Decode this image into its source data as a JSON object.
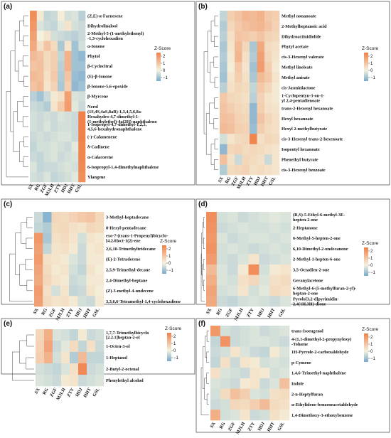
{
  "chart_data": [
    {
      "type": "heatmap",
      "panel_label": "(a)",
      "legend_title": "Z-Score",
      "legend_ticks": [
        2,
        1,
        0,
        -1
      ],
      "columns": [
        "SX",
        "RG",
        "ZGF",
        "MJLH",
        "ZTY",
        "HDJ",
        "HHT",
        "GSL"
      ],
      "rows": [
        "(Z,E)-α-Farnesene",
        "Dihydrolinalool",
        "2-Methyl-5-(1-methylethenyl)\n-1,3-cyclohexadien",
        "α-Ionone",
        "Phytol",
        "β-Cyclocitral",
        "(E)-β-Ionone",
        "β-Ionone-5,6-epoxide",
        "β-Myrcene",
        "Nerol",
        "(1S,4S,4aS,8aR)-1,3,4,5,6,8a-\nHexahydro-4,7-dimethyl-1-\n(1-methylethyl)-4a(2H)-naphthaleno",
        "1-Isopropyl-4,7-dimethyl-1,2,3,\n4,5,6-hexahydronaphthalene",
        "(-)-Calamenene",
        "δ-Cadinene",
        "α-Calacorene",
        "6-Isopropyl-1,4-dimethylnaphthalene",
        "Ylangene"
      ],
      "values": [
        [
          2.2,
          0.2,
          -0.6,
          -0.5,
          0.1,
          -0.4,
          -0.3,
          -0.7
        ],
        [
          2.0,
          -0.3,
          -0.5,
          -0.6,
          -0.2,
          0.3,
          -0.4,
          -0.5
        ],
        [
          1.8,
          0.0,
          0.3,
          -0.4,
          -0.5,
          -0.6,
          -0.7,
          -0.5
        ],
        [
          1.6,
          0.4,
          1.0,
          0.5,
          -0.9,
          0.3,
          -1.0,
          -0.4
        ],
        [
          1.2,
          1.0,
          0.5,
          0.8,
          -0.6,
          1.4,
          -1.0,
          -1.2
        ],
        [
          1.0,
          1.1,
          0.5,
          0.8,
          -0.7,
          1.4,
          -1.0,
          -1.0
        ],
        [
          1.2,
          1.1,
          0.4,
          0.9,
          -0.8,
          1.0,
          -1.1,
          -1.2
        ],
        [
          1.0,
          1.2,
          0.3,
          0.7,
          -0.9,
          0.8,
          -1.2,
          -1.0
        ],
        [
          -0.7,
          -1.0,
          -0.5,
          0.2,
          0.4,
          1.8,
          -0.3,
          -0.4
        ],
        [
          -0.5,
          -0.6,
          -0.8,
          0.3,
          0.9,
          1.9,
          -0.2,
          -0.5
        ],
        [
          -0.4,
          -0.5,
          -0.4,
          -0.5,
          -0.3,
          -0.4,
          -0.5,
          2.6
        ],
        [
          -0.4,
          -0.5,
          -0.3,
          -0.5,
          -0.4,
          -0.4,
          -0.5,
          2.6
        ],
        [
          -0.5,
          -0.4,
          -0.5,
          -0.4,
          -0.3,
          -0.3,
          -0.5,
          2.5
        ],
        [
          -0.6,
          -0.4,
          -0.4,
          -0.3,
          -0.4,
          -0.5,
          -0.2,
          2.4
        ],
        [
          -0.5,
          -0.6,
          -0.4,
          -0.3,
          -0.5,
          -0.4,
          -0.3,
          2.4
        ],
        [
          -0.3,
          -0.6,
          -0.5,
          -0.5,
          -0.4,
          -0.3,
          -0.4,
          2.3
        ],
        [
          -0.4,
          -0.5,
          -0.3,
          -0.6,
          -0.5,
          -0.4,
          -0.2,
          2.2
        ]
      ]
    },
    {
      "type": "heatmap",
      "panel_label": "(b)",
      "legend_title": "Z-Score",
      "legend_ticks": [
        2,
        1,
        0,
        -1
      ],
      "columns": [
        "SX",
        "RG",
        "ZGF",
        "MJLH",
        "ZTY",
        "HDJ",
        "HHT",
        "GSL"
      ],
      "rows": [
        "Methyl nonanoate",
        "2-Methylheptanoic acid",
        "Dihydroactinidiolide",
        "Phytyl acetate",
        "cis-3-Hexenyl valerate",
        "Methyl linoleate",
        "Methyl anisate",
        "cis-Jasminlactone",
        "1-Cyclopentyn-3-on-1-\nyl 2,4-pentadienoate",
        "trans-2-Hexenyl hexanoate",
        "Hexyl hexanoate",
        "Hexyl 2-methylbutyrate",
        "cis-3-Hexenyl trans-2-hexenoate",
        "Isopentyl hexanoate",
        "Phenethyl butyrate",
        "cis-3-Hexenyl benzoate"
      ],
      "values": [
        [
          -0.6,
          0.8,
          1.0,
          1.3,
          1.2,
          1.4,
          0.9,
          0.8
        ],
        [
          -0.8,
          0.6,
          0.9,
          1.1,
          1.2,
          1.3,
          1.0,
          0.7
        ],
        [
          -0.7,
          0.4,
          1.0,
          0.9,
          0.8,
          1.0,
          0.7,
          0.6
        ],
        [
          -0.9,
          0.3,
          1.2,
          0.6,
          -0.9,
          1.6,
          0.5,
          0.4
        ],
        [
          -0.8,
          0.2,
          1.3,
          0.4,
          -0.8,
          1.8,
          0.6,
          0.3
        ],
        [
          -0.9,
          0.1,
          0.9,
          0.3,
          -1.0,
          1.9,
          0.8,
          0.2
        ],
        [
          -1.0,
          0.3,
          0.8,
          0.4,
          -0.9,
          1.2,
          0.9,
          0.3
        ],
        [
          -0.7,
          0.4,
          0.6,
          0.5,
          -0.6,
          0.9,
          0.6,
          0.2
        ],
        [
          0.9,
          0.6,
          0.5,
          0.4,
          -0.7,
          0.7,
          0.3,
          0.2
        ],
        [
          1.0,
          0.8,
          0.6,
          0.5,
          -1.2,
          0.8,
          0.4,
          0.3
        ],
        [
          1.1,
          1.0,
          0.7,
          0.6,
          -1.2,
          1.0,
          0.6,
          0.4
        ],
        [
          1.2,
          1.1,
          0.8,
          0.7,
          -1.1,
          0.8,
          0.5,
          0.4
        ],
        [
          -0.4,
          0.3,
          0.5,
          0.6,
          2.4,
          0.4,
          0.6,
          0.5
        ],
        [
          -1.2,
          0.6,
          0.7,
          0.5,
          0.6,
          0.5,
          0.4,
          0.3
        ],
        [
          1.1,
          0.4,
          -0.5,
          0.6,
          0.5,
          0.4,
          -0.5,
          0.3
        ],
        [
          -0.8,
          0.5,
          0.6,
          0.7,
          0.4,
          0.5,
          0.4,
          0.3
        ]
      ]
    },
    {
      "type": "heatmap",
      "panel_label": "(c)",
      "legend_title": "Z-Score",
      "legend_ticks": [
        2,
        1,
        0,
        -1
      ],
      "columns": [
        "SX",
        "RG",
        "ZGF",
        "MJLH",
        "ZTY",
        "HDJ",
        "HHT",
        "GSL"
      ],
      "rows": [
        "3-Methyl-heptadecane",
        "8-Hexyl-pentadecane",
        "exo-7-(trans-1-Propenyl)bicyclo-\n[4.2.0]oct-1(2)-ene",
        "2,6,10-Trimethyltridecane",
        "(E)-2-Tetradecene",
        "2,5,9-Trimethyl-decane",
        "2,4-Dimethyl-heptane",
        "(Z)-3-methyl-4-undecene",
        "3,3,6,6-Tetramethyl-1,4-cyclohexadiene"
      ],
      "values": [
        [
          -0.5,
          -1.3,
          0.6,
          0.5,
          0.7,
          0.9,
          1.0,
          0.6
        ],
        [
          -0.6,
          -0.8,
          0.5,
          0.6,
          0.4,
          0.3,
          0.6,
          0.5
        ],
        [
          2.0,
          -0.9,
          0.4,
          0.5,
          0.3,
          -0.4,
          0.3,
          0.2
        ],
        [
          1.8,
          -0.6,
          0.3,
          0.4,
          0.2,
          -0.5,
          0.2,
          0.3
        ],
        [
          1.9,
          0.4,
          0.3,
          0.2,
          -0.3,
          -0.5,
          0.2,
          0.2
        ],
        [
          1.7,
          0.5,
          0.2,
          0.3,
          -0.4,
          -0.6,
          0.3,
          0.1
        ],
        [
          1.6,
          0.6,
          0.3,
          0.2,
          -0.5,
          -0.4,
          0.2,
          0.2
        ],
        [
          1.9,
          0.4,
          -0.4,
          0.3,
          -0.6,
          -0.5,
          0.3,
          0.1
        ],
        [
          1.8,
          0.5,
          0.3,
          0.4,
          0.2,
          -0.4,
          -0.5,
          0.2
        ]
      ]
    },
    {
      "type": "heatmap",
      "panel_label": "(d)",
      "legend_title": "Z-Score",
      "legend_ticks": [
        2,
        1,
        0,
        -1
      ],
      "columns": [
        "SX",
        "RG",
        "ZGF",
        "MJLH",
        "ZTY",
        "HDJ",
        "HHT",
        "GSL"
      ],
      "rows": [
        "(R,S)-5-Ethyl-6-methyl-3E-\nhepten-2-one",
        "2-Heptanone",
        "6-Methyl-5-hepten-2-one",
        "6,10-Dimethyl-2-undecanone",
        "2-Methyl-1-hepten-6-one",
        "3,5-Octadien-2-one",
        "Geranylacetone",
        "6-Methyl-6-(5-methylfuran-2-yl)-\nheptan-2-one",
        "Pyrolo[3,2-d]pyrimidin-\n2,4(1H,3H)-dione"
      ],
      "values": [
        [
          2.2,
          -0.4,
          -0.3,
          -0.5,
          -0.4,
          -0.3,
          -0.2,
          -0.3
        ],
        [
          2.1,
          -0.5,
          -0.4,
          -0.3,
          -0.4,
          -0.4,
          -0.3,
          -0.4
        ],
        [
          2.0,
          -0.3,
          -0.5,
          -0.4,
          -0.3,
          -0.3,
          -0.4,
          -0.3
        ],
        [
          2.1,
          -0.4,
          -0.3,
          -0.4,
          -0.5,
          -0.4,
          -0.3,
          -0.4
        ],
        [
          1.9,
          -0.4,
          -0.5,
          -0.3,
          0.3,
          -0.5,
          -0.4,
          -0.3
        ],
        [
          1.2,
          -0.3,
          -0.5,
          0.2,
          2.2,
          -0.4,
          0.2,
          0.3
        ],
        [
          1.5,
          -0.3,
          -0.4,
          0.4,
          0.6,
          -0.3,
          0.4,
          0.5
        ],
        [
          1.7,
          -0.4,
          -0.3,
          0.3,
          -0.4,
          -0.2,
          0.5,
          0.4
        ],
        [
          1.6,
          -0.5,
          -0.6,
          -0.4,
          -0.3,
          -0.4,
          -0.5,
          -0.3
        ]
      ]
    },
    {
      "type": "heatmap",
      "panel_label": "(e)",
      "legend_title": "Z-Score",
      "legend_ticks": [
        2,
        1,
        0,
        -1
      ],
      "columns": [
        "SX",
        "RG",
        "ZGF",
        "MJLH",
        "ZTY",
        "HDJ",
        "HHT",
        "GSL"
      ],
      "rows": [
        "1,7,7-Trimethylbicyclo\n[2.2.1]heptan-2-ol",
        "1-Octen-3-ol",
        "1-Heptanol",
        "2-Butyl-2-octenal",
        "Phenylethyl alcohol"
      ],
      "values": [
        [
          0.6,
          1.5,
          -0.3,
          -0.4,
          -0.6,
          0.2,
          -0.5,
          -0.4
        ],
        [
          0.7,
          1.7,
          -0.5,
          -0.2,
          0.5,
          -0.6,
          0.4,
          -0.5
        ],
        [
          0.8,
          1.4,
          -0.4,
          0.3,
          -0.8,
          1.2,
          -0.6,
          -0.6
        ],
        [
          -0.4,
          -0.5,
          -0.6,
          -0.3,
          0.4,
          2.3,
          -0.5,
          -0.4
        ],
        [
          -0.3,
          -0.4,
          -0.5,
          0.2,
          0.3,
          -0.5,
          -0.4,
          -0.3
        ]
      ]
    },
    {
      "type": "heatmap",
      "panel_label": "(f)",
      "legend_title": "Z-Score",
      "legend_ticks": [
        2,
        1,
        0,
        -1
      ],
      "columns": [
        "SX",
        "RG",
        "ZGF",
        "MJLH",
        "ZTY",
        "HDJ",
        "HHT",
        "GSL"
      ],
      "rows": [
        "trans-Isoeugenol",
        "4-(1,1-dimethyl-2-propynyloxy)\n-Toluene",
        "1H-Pyrrole-2-carboxaldehyde",
        "p-Cymene",
        "1,4,6-Trimethyl-naphthalene",
        "Indole",
        "2-n-Heptylfuran",
        "α-Ethylidene-benzeneacetaldehyde",
        "1,4-Dimethoxy-3-ethoxybenzene"
      ],
      "values": [
        [
          2.0,
          -0.4,
          -0.5,
          -0.4,
          -0.3,
          -0.5,
          -0.4,
          -0.3
        ],
        [
          -0.6,
          2.1,
          -0.5,
          -0.4,
          -0.3,
          -0.3,
          -0.4,
          -0.5
        ],
        [
          -0.5,
          -0.4,
          0.3,
          -0.3,
          -0.5,
          -0.6,
          0.2,
          -0.3
        ],
        [
          -0.6,
          0.4,
          -0.5,
          0.3,
          0.2,
          -0.4,
          -0.3,
          -0.4
        ],
        [
          0.4,
          -0.3,
          -0.4,
          -0.5,
          0.3,
          0.2,
          -0.4,
          -0.3
        ],
        [
          -0.3,
          -0.4,
          -0.5,
          0.2,
          0.3,
          -0.5,
          -0.3,
          1.1
        ],
        [
          -0.4,
          0.5,
          1.1,
          0.8,
          -0.3,
          -0.4,
          0.4,
          0.5
        ],
        [
          -0.5,
          -0.4,
          0.6,
          0.5,
          0.8,
          1.2,
          0.5,
          0.4
        ],
        [
          1.5,
          -0.4,
          -0.3,
          0.3,
          -0.5,
          -0.4,
          0.4,
          0.2
        ]
      ]
    }
  ]
}
